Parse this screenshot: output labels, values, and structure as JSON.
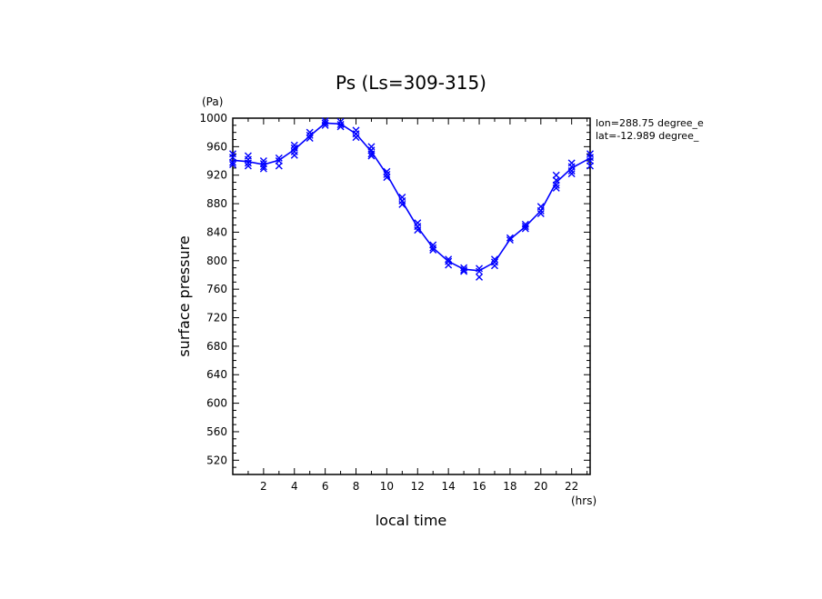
{
  "chart_data": {
    "type": "line",
    "title": "Ps (Ls=309-315)",
    "xlabel": "local time",
    "ylabel": "surface pressure",
    "x_unit": "(hrs)",
    "y_unit": "(Pa)",
    "xlim": [
      0,
      23.2
    ],
    "ylim": [
      500,
      1000
    ],
    "x_ticks": [
      2,
      4,
      6,
      8,
      10,
      12,
      14,
      16,
      18,
      20,
      22
    ],
    "y_ticks": [
      520,
      560,
      600,
      640,
      680,
      720,
      760,
      800,
      840,
      880,
      920,
      960,
      1000
    ],
    "annotations": [
      "lon=288.75 degree_e",
      "lat=-12.989 degree_"
    ],
    "line_color": "#0000ff",
    "grid": false,
    "series": [
      {
        "marker": "x",
        "x": [
          0.0,
          1.0,
          2.0,
          3.0,
          4.0,
          5.0,
          6.0,
          7.0,
          8.0,
          9.0,
          10.0,
          11.0,
          12.0,
          13.0,
          14.0,
          15.0,
          16.0,
          17.0,
          18.0,
          19.0,
          20.0,
          21.0,
          22.0,
          23.2
        ],
        "y": [
          941,
          939,
          935,
          941,
          956,
          975,
          993,
          992,
          978,
          953,
          921,
          883,
          847,
          818,
          799,
          788,
          786,
          798,
          830,
          848,
          870,
          910,
          930,
          944
        ],
        "scatter": [
          [
            0.0,
            950
          ],
          [
            0.0,
            945
          ],
          [
            0.0,
            938
          ],
          [
            0.0,
            935
          ],
          [
            1.0,
            947
          ],
          [
            1.0,
            942
          ],
          [
            1.0,
            937
          ],
          [
            1.0,
            933
          ],
          [
            2.0,
            940
          ],
          [
            2.0,
            936
          ],
          [
            2.0,
            932
          ],
          [
            2.0,
            929
          ],
          [
            3.0,
            944
          ],
          [
            3.0,
            940
          ],
          [
            3.0,
            933
          ],
          [
            4.0,
            962
          ],
          [
            4.0,
            958
          ],
          [
            4.0,
            953
          ],
          [
            4.0,
            948
          ],
          [
            5.0,
            980
          ],
          [
            5.0,
            976
          ],
          [
            5.0,
            972
          ],
          [
            6.0,
            996
          ],
          [
            6.0,
            993
          ],
          [
            6.0,
            990
          ],
          [
            7.0,
            995
          ],
          [
            7.0,
            991
          ],
          [
            7.0,
            988
          ],
          [
            8.0,
            983
          ],
          [
            8.0,
            978
          ],
          [
            8.0,
            973
          ],
          [
            9.0,
            960
          ],
          [
            9.0,
            955
          ],
          [
            9.0,
            950
          ],
          [
            9.0,
            947
          ],
          [
            10.0,
            925
          ],
          [
            10.0,
            921
          ],
          [
            10.0,
            917
          ],
          [
            11.0,
            889
          ],
          [
            11.0,
            884
          ],
          [
            11.0,
            879
          ],
          [
            12.0,
            853
          ],
          [
            12.0,
            848
          ],
          [
            12.0,
            843
          ],
          [
            13.0,
            822
          ],
          [
            13.0,
            818
          ],
          [
            13.0,
            815
          ],
          [
            14.0,
            802
          ],
          [
            14.0,
            799
          ],
          [
            14.0,
            794
          ],
          [
            15.0,
            790
          ],
          [
            15.0,
            787
          ],
          [
            15.0,
            785
          ],
          [
            16.0,
            789
          ],
          [
            16.0,
            785
          ],
          [
            16.0,
            777
          ],
          [
            17.0,
            802
          ],
          [
            17.0,
            798
          ],
          [
            17.0,
            793
          ],
          [
            18.0,
            832
          ],
          [
            18.0,
            829
          ],
          [
            19.0,
            851
          ],
          [
            19.0,
            848
          ],
          [
            19.0,
            845
          ],
          [
            20.0,
            876
          ],
          [
            20.0,
            870
          ],
          [
            20.0,
            866
          ],
          [
            21.0,
            920
          ],
          [
            21.0,
            913
          ],
          [
            21.0,
            906
          ],
          [
            21.0,
            902
          ],
          [
            22.0,
            937
          ],
          [
            22.0,
            932
          ],
          [
            22.0,
            926
          ],
          [
            22.0,
            922
          ],
          [
            23.2,
            950
          ],
          [
            23.2,
            945
          ],
          [
            23.2,
            940
          ],
          [
            23.2,
            933
          ]
        ]
      }
    ]
  }
}
